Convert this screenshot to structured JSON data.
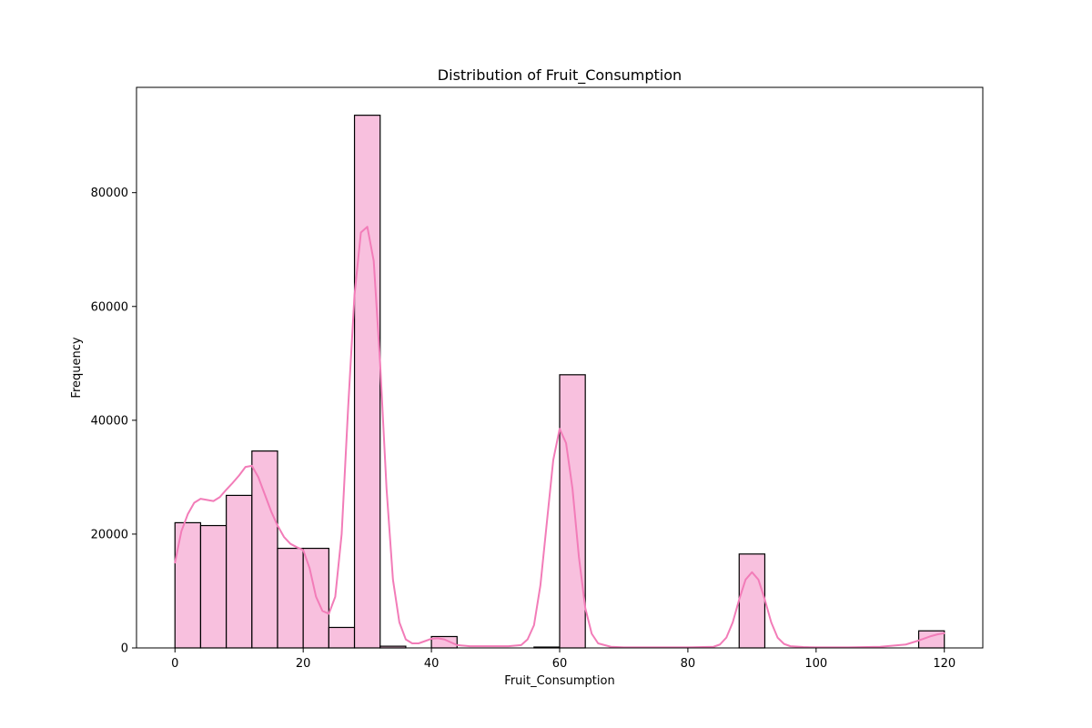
{
  "chart_data": {
    "type": "bar",
    "title": "Distribution of Fruit_Consumption",
    "xlabel": "Fruit_Consumption",
    "ylabel": "Frequency",
    "xlim": [
      -6,
      126
    ],
    "ylim": [
      0,
      98500
    ],
    "xticks": [
      0,
      20,
      40,
      60,
      80,
      100,
      120
    ],
    "yticks": [
      0,
      20000,
      40000,
      60000,
      80000
    ],
    "bin_width": 4,
    "bins": [
      {
        "start": 0,
        "count": 22000
      },
      {
        "start": 4,
        "count": 21500
      },
      {
        "start": 8,
        "count": 26800
      },
      {
        "start": 12,
        "count": 34600
      },
      {
        "start": 16,
        "count": 17500
      },
      {
        "start": 20,
        "count": 17500
      },
      {
        "start": 24,
        "count": 3600
      },
      {
        "start": 28,
        "count": 93600
      },
      {
        "start": 32,
        "count": 300
      },
      {
        "start": 36,
        "count": 0
      },
      {
        "start": 40,
        "count": 2000
      },
      {
        "start": 44,
        "count": 0
      },
      {
        "start": 48,
        "count": 0
      },
      {
        "start": 52,
        "count": 0
      },
      {
        "start": 56,
        "count": 150
      },
      {
        "start": 60,
        "count": 48000
      },
      {
        "start": 64,
        "count": 0
      },
      {
        "start": 68,
        "count": 0
      },
      {
        "start": 72,
        "count": 0
      },
      {
        "start": 76,
        "count": 0
      },
      {
        "start": 80,
        "count": 0
      },
      {
        "start": 84,
        "count": 0
      },
      {
        "start": 88,
        "count": 16500
      },
      {
        "start": 92,
        "count": 0
      },
      {
        "start": 96,
        "count": 0
      },
      {
        "start": 100,
        "count": 0
      },
      {
        "start": 104,
        "count": 0
      },
      {
        "start": 108,
        "count": 0
      },
      {
        "start": 112,
        "count": 0
      },
      {
        "start": 116,
        "count": 3000
      }
    ],
    "kde": {
      "x": [
        0,
        1,
        2,
        3,
        4,
        5,
        6,
        7,
        8,
        9,
        10,
        11,
        12,
        13,
        14,
        15,
        16,
        17,
        18,
        19,
        20,
        21,
        22,
        23,
        24,
        25,
        26,
        27,
        28,
        29,
        30,
        31,
        32,
        33,
        34,
        35,
        36,
        37,
        38,
        39,
        40,
        41,
        42,
        43,
        44,
        46,
        48,
        50,
        52,
        54,
        55,
        56,
        57,
        58,
        59,
        60,
        61,
        62,
        63,
        64,
        65,
        66,
        68,
        70,
        75,
        80,
        84,
        85,
        86,
        87,
        88,
        89,
        90,
        91,
        92,
        93,
        94,
        95,
        96,
        98,
        100,
        105,
        110,
        114,
        116,
        118,
        119,
        120
      ],
      "y": [
        15000,
        20500,
        23500,
        25500,
        26200,
        26000,
        25800,
        26500,
        27800,
        29000,
        30300,
        31800,
        32000,
        30000,
        27000,
        24000,
        21500,
        19500,
        18300,
        17700,
        17200,
        14000,
        9000,
        6500,
        6000,
        9000,
        20000,
        42000,
        62000,
        73000,
        74000,
        68000,
        50000,
        28000,
        12000,
        4500,
        1500,
        800,
        800,
        1200,
        1600,
        1700,
        1500,
        1000,
        500,
        300,
        300,
        300,
        300,
        500,
        1500,
        4000,
        11000,
        22000,
        33000,
        38500,
        36000,
        28000,
        16000,
        7000,
        2500,
        800,
        200,
        100,
        100,
        100,
        200,
        600,
        1800,
        4500,
        8500,
        12000,
        13300,
        12000,
        8500,
        4500,
        1800,
        700,
        300,
        150,
        100,
        100,
        200,
        600,
        1300,
        2100,
        2400,
        2600
      ]
    },
    "colors": {
      "bar_fill": "#f8c0de",
      "bar_edge": "#000000",
      "kde_line": "#f27cb8"
    },
    "grid": false,
    "legend": "none"
  }
}
